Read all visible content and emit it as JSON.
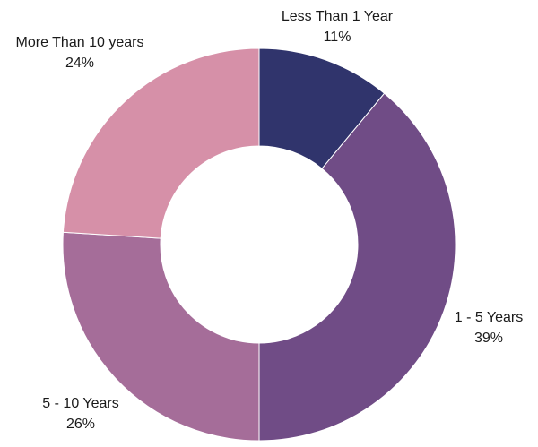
{
  "chart_data": {
    "type": "pie",
    "variant": "donut",
    "title": "",
    "categories": [
      "Less Than 1 Year",
      "1 - 5 Years",
      "5 - 10 Years",
      "More Than 10 years"
    ],
    "values": [
      11,
      39,
      26,
      24
    ],
    "value_labels": [
      "11%",
      "39%",
      "26%",
      "24%"
    ],
    "colors": [
      "#30346c",
      "#704c86",
      "#a56d99",
      "#d690a8"
    ],
    "start": "12 o'clock",
    "direction": "clockwise",
    "legend": "none"
  }
}
